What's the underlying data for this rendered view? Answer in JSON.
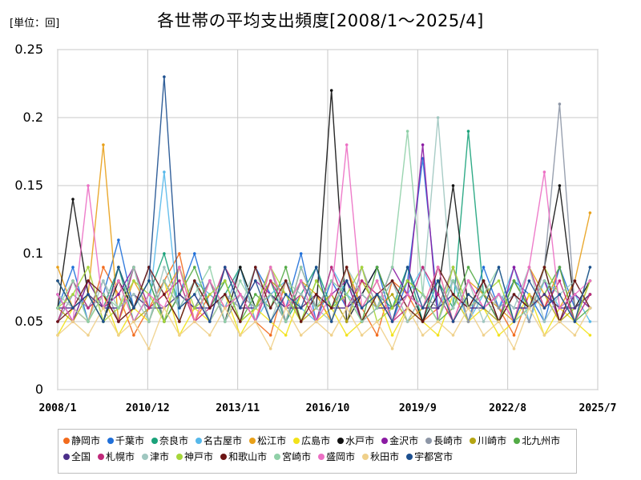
{
  "unit_label": "[単位：回]",
  "chart_data": {
    "type": "line",
    "title": "各世帯の平均支出頻度[2008/1～2025/4]",
    "xlabel": "",
    "ylabel": "",
    "ylim": [
      0,
      0.25
    ],
    "yticks": [
      "0",
      "0.05",
      "0.1",
      "0.15",
      "0.2",
      "0.25"
    ],
    "xticks": [
      "2008/1",
      "2010/12",
      "2013/11",
      "2016/10",
      "2019/9",
      "2022/8",
      "2025/7"
    ],
    "grid": true,
    "legend_position": "bottom",
    "x_start": "2008/1",
    "x_end": "2025/4",
    "series": [
      {
        "name": "静岡市",
        "color": "#f26b1d",
        "values": [
          0.08,
          0.06,
          0.05,
          0.09,
          0.07,
          0.04,
          0.06,
          0.08,
          0.1,
          0.05,
          0.07,
          0.06,
          0.09,
          0.05,
          0.04,
          0.08,
          0.06,
          0.07,
          0.05,
          0.09,
          0.06,
          0.04,
          0.08,
          0.07,
          0.05,
          0.06,
          0.09,
          0.05,
          0.08,
          0.06,
          0.04,
          0.07,
          0.06,
          0.09,
          0.05,
          0.08
        ]
      },
      {
        "name": "千葉市",
        "color": "#1f6fd9",
        "values": [
          0.06,
          0.09,
          0.05,
          0.07,
          0.11,
          0.06,
          0.08,
          0.05,
          0.07,
          0.1,
          0.06,
          0.08,
          0.05,
          0.09,
          0.07,
          0.06,
          0.1,
          0.05,
          0.08,
          0.06,
          0.07,
          0.09,
          0.05,
          0.08,
          0.17,
          0.06,
          0.07,
          0.05,
          0.09,
          0.06,
          0.08,
          0.07,
          0.05,
          0.09,
          0.06,
          0.07
        ]
      },
      {
        "name": "奈良市",
        "color": "#1aa27a",
        "values": [
          0.07,
          0.05,
          0.08,
          0.06,
          0.09,
          0.05,
          0.07,
          0.1,
          0.06,
          0.08,
          0.05,
          0.07,
          0.09,
          0.06,
          0.08,
          0.05,
          0.07,
          0.09,
          0.06,
          0.08,
          0.05,
          0.07,
          0.06,
          0.09,
          0.05,
          0.08,
          0.06,
          0.19,
          0.07,
          0.05,
          0.08,
          0.06,
          0.09,
          0.05,
          0.07,
          0.06
        ]
      },
      {
        "name": "名古屋市",
        "color": "#56b8ea",
        "values": [
          0.05,
          0.08,
          0.06,
          0.07,
          0.05,
          0.09,
          0.06,
          0.16,
          0.05,
          0.08,
          0.07,
          0.06,
          0.09,
          0.05,
          0.07,
          0.08,
          0.06,
          0.05,
          0.09,
          0.07,
          0.06,
          0.08,
          0.05,
          0.07,
          0.09,
          0.06,
          0.08,
          0.05,
          0.07,
          0.06,
          0.09,
          0.05,
          0.08,
          0.06,
          0.07,
          0.05
        ]
      },
      {
        "name": "松江市",
        "color": "#e8a019",
        "values": [
          0.09,
          0.06,
          0.07,
          0.18,
          0.05,
          0.08,
          0.06,
          0.07,
          0.09,
          0.05,
          0.08,
          0.06,
          0.07,
          0.05,
          0.09,
          0.06,
          0.08,
          0.07,
          0.05,
          0.09,
          0.06,
          0.08,
          0.05,
          0.07,
          0.06,
          0.09,
          0.05,
          0.08,
          0.07,
          0.06,
          0.05,
          0.09,
          0.07,
          0.06,
          0.08,
          0.13
        ]
      },
      {
        "name": "広島市",
        "color": "#f2e21a",
        "values": [
          0.04,
          0.06,
          0.05,
          0.07,
          0.04,
          0.06,
          0.05,
          0.08,
          0.04,
          0.06,
          0.05,
          0.07,
          0.04,
          0.06,
          0.05,
          0.04,
          0.07,
          0.05,
          0.06,
          0.04,
          0.05,
          0.07,
          0.04,
          0.06,
          0.05,
          0.04,
          0.07,
          0.05,
          0.06,
          0.04,
          0.05,
          0.07,
          0.04,
          0.06,
          0.05,
          0.04
        ]
      },
      {
        "name": "水戸市",
        "color": "#111111",
        "values": [
          0.06,
          0.14,
          0.07,
          0.05,
          0.08,
          0.06,
          0.09,
          0.05,
          0.07,
          0.06,
          0.08,
          0.05,
          0.09,
          0.06,
          0.07,
          0.05,
          0.08,
          0.06,
          0.22,
          0.05,
          0.07,
          0.09,
          0.06,
          0.08,
          0.05,
          0.07,
          0.15,
          0.06,
          0.08,
          0.05,
          0.07,
          0.06,
          0.09,
          0.15,
          0.06,
          0.08
        ]
      },
      {
        "name": "金沢市",
        "color": "#8b1ba3",
        "values": [
          0.07,
          0.05,
          0.08,
          0.06,
          0.07,
          0.09,
          0.05,
          0.08,
          0.06,
          0.07,
          0.05,
          0.09,
          0.06,
          0.08,
          0.07,
          0.05,
          0.09,
          0.06,
          0.07,
          0.08,
          0.05,
          0.06,
          0.09,
          0.07,
          0.18,
          0.05,
          0.08,
          0.06,
          0.07,
          0.05,
          0.09,
          0.06,
          0.08,
          0.05,
          0.07,
          0.06
        ]
      },
      {
        "name": "長崎市",
        "color": "#8d96a6",
        "values": [
          0.05,
          0.07,
          0.06,
          0.08,
          0.05,
          0.06,
          0.09,
          0.05,
          0.07,
          0.06,
          0.08,
          0.05,
          0.07,
          0.06,
          0.09,
          0.05,
          0.08,
          0.06,
          0.07,
          0.05,
          0.09,
          0.06,
          0.08,
          0.05,
          0.07,
          0.06,
          0.09,
          0.05,
          0.08,
          0.06,
          0.07,
          0.05,
          0.09,
          0.21,
          0.06,
          0.07
        ]
      },
      {
        "name": "川崎市",
        "color": "#b5a512",
        "values": [
          0.06,
          0.05,
          0.07,
          0.06,
          0.08,
          0.05,
          0.06,
          0.07,
          0.05,
          0.08,
          0.06,
          0.07,
          0.05,
          0.06,
          0.08,
          0.07,
          0.05,
          0.06,
          0.07,
          0.05,
          0.08,
          0.06,
          0.07,
          0.05,
          0.06,
          0.08,
          0.05,
          0.07,
          0.06,
          0.05,
          0.08,
          0.06,
          0.07,
          0.05,
          0.06,
          0.07
        ]
      },
      {
        "name": "北九州市",
        "color": "#53ab46",
        "values": [
          0.08,
          0.06,
          0.07,
          0.05,
          0.09,
          0.06,
          0.08,
          0.05,
          0.07,
          0.09,
          0.06,
          0.08,
          0.05,
          0.07,
          0.06,
          0.09,
          0.05,
          0.08,
          0.06,
          0.07,
          0.05,
          0.09,
          0.06,
          0.08,
          0.07,
          0.05,
          0.06,
          0.09,
          0.07,
          0.05,
          0.08,
          0.06,
          0.07,
          0.09,
          0.05,
          0.06
        ]
      },
      {
        "name": "全国",
        "color": "#4b2f8a",
        "values": [
          0.06,
          0.06,
          0.07,
          0.06,
          0.06,
          0.07,
          0.06,
          0.06,
          0.07,
          0.06,
          0.06,
          0.07,
          0.06,
          0.06,
          0.07,
          0.06,
          0.06,
          0.07,
          0.06,
          0.06,
          0.07,
          0.06,
          0.06,
          0.07,
          0.06,
          0.06,
          0.07,
          0.06,
          0.06,
          0.07,
          0.06,
          0.06,
          0.07,
          0.06,
          0.06,
          0.07
        ]
      },
      {
        "name": "札幌市",
        "color": "#c0297a",
        "values": [
          0.05,
          0.08,
          0.06,
          0.07,
          0.05,
          0.09,
          0.06,
          0.07,
          0.08,
          0.05,
          0.06,
          0.09,
          0.07,
          0.05,
          0.08,
          0.06,
          0.07,
          0.05,
          0.09,
          0.06,
          0.08,
          0.07,
          0.05,
          0.06,
          0.09,
          0.07,
          0.05,
          0.08,
          0.06,
          0.07,
          0.05,
          0.09,
          0.06,
          0.08,
          0.05,
          0.07
        ]
      },
      {
        "name": "津市",
        "color": "#9fc7c0",
        "values": [
          0.07,
          0.06,
          0.05,
          0.08,
          0.06,
          0.07,
          0.05,
          0.09,
          0.06,
          0.08,
          0.05,
          0.07,
          0.06,
          0.09,
          0.05,
          0.08,
          0.07,
          0.06,
          0.05,
          0.09,
          0.07,
          0.06,
          0.08,
          0.05,
          0.07,
          0.2,
          0.06,
          0.08,
          0.05,
          0.07,
          0.06,
          0.09,
          0.05,
          0.07,
          0.08,
          0.06
        ]
      },
      {
        "name": "神戸市",
        "color": "#a6d63a",
        "values": [
          0.06,
          0.07,
          0.09,
          0.05,
          0.06,
          0.08,
          0.07,
          0.05,
          0.09,
          0.06,
          0.07,
          0.08,
          0.05,
          0.06,
          0.09,
          0.07,
          0.05,
          0.08,
          0.06,
          0.07,
          0.09,
          0.05,
          0.06,
          0.08,
          0.07,
          0.05,
          0.09,
          0.06,
          0.07,
          0.08,
          0.05,
          0.06,
          0.09,
          0.07,
          0.05,
          0.08
        ]
      },
      {
        "name": "和歌山市",
        "color": "#6b1414",
        "values": [
          0.05,
          0.06,
          0.08,
          0.07,
          0.05,
          0.06,
          0.09,
          0.07,
          0.05,
          0.08,
          0.06,
          0.07,
          0.05,
          0.09,
          0.06,
          0.08,
          0.05,
          0.07,
          0.06,
          0.09,
          0.05,
          0.07,
          0.08,
          0.06,
          0.05,
          0.09,
          0.07,
          0.06,
          0.08,
          0.05,
          0.07,
          0.06,
          0.09,
          0.05,
          0.08,
          0.06
        ]
      },
      {
        "name": "宮崎市",
        "color": "#90d0a8",
        "values": [
          0.06,
          0.08,
          0.05,
          0.07,
          0.06,
          0.09,
          0.05,
          0.08,
          0.06,
          0.07,
          0.09,
          0.05,
          0.08,
          0.06,
          0.07,
          0.05,
          0.09,
          0.06,
          0.08,
          0.07,
          0.05,
          0.06,
          0.09,
          0.19,
          0.07,
          0.05,
          0.08,
          0.06,
          0.07,
          0.09,
          0.05,
          0.06,
          0.08,
          0.07,
          0.05,
          0.09
        ]
      },
      {
        "name": "盛岡市",
        "color": "#ec6fc4",
        "values": [
          0.07,
          0.05,
          0.15,
          0.06,
          0.08,
          0.05,
          0.07,
          0.06,
          0.09,
          0.05,
          0.08,
          0.06,
          0.07,
          0.05,
          0.09,
          0.06,
          0.08,
          0.05,
          0.07,
          0.18,
          0.06,
          0.08,
          0.05,
          0.07,
          0.06,
          0.09,
          0.05,
          0.08,
          0.06,
          0.07,
          0.05,
          0.09,
          0.16,
          0.06,
          0.07,
          0.08
        ]
      },
      {
        "name": "秋田市",
        "color": "#efd08a",
        "values": [
          0.04,
          0.05,
          0.04,
          0.06,
          0.04,
          0.05,
          0.03,
          0.06,
          0.04,
          0.05,
          0.04,
          0.06,
          0.04,
          0.05,
          0.03,
          0.06,
          0.04,
          0.05,
          0.04,
          0.06,
          0.04,
          0.05,
          0.03,
          0.06,
          0.04,
          0.05,
          0.04,
          0.06,
          0.04,
          0.05,
          0.03,
          0.06,
          0.04,
          0.05,
          0.04,
          0.06
        ]
      },
      {
        "name": "宇都宮市",
        "color": "#1c4f8f",
        "values": [
          0.08,
          0.06,
          0.07,
          0.05,
          0.09,
          0.06,
          0.08,
          0.23,
          0.06,
          0.07,
          0.05,
          0.09,
          0.06,
          0.08,
          0.05,
          0.07,
          0.06,
          0.09,
          0.05,
          0.08,
          0.06,
          0.07,
          0.05,
          0.09,
          0.06,
          0.08,
          0.05,
          0.07,
          0.06,
          0.09,
          0.05,
          0.08,
          0.06,
          0.07,
          0.05,
          0.09
        ]
      }
    ]
  }
}
